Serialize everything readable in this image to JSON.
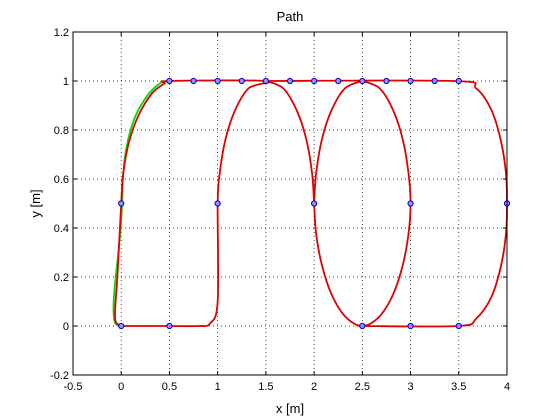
{
  "chart_data": {
    "type": "line",
    "title": "Path",
    "xlabel": "x [m]",
    "ylabel": "y [m]",
    "xlim": [
      -0.5,
      4
    ],
    "ylim": [
      -0.2,
      1.2
    ],
    "grid": true,
    "x_ticks": [
      -0.5,
      0,
      0.5,
      1,
      1.5,
      2,
      2.5,
      3,
      3.5,
      4
    ],
    "x_tick_labels": [
      "-0.5",
      "0",
      "0.5",
      "1",
      "1.5",
      "2",
      "2.5",
      "3",
      "3.5",
      "4"
    ],
    "y_ticks": [
      -0.2,
      0,
      0.2,
      0.4,
      0.6,
      0.8,
      1,
      1.2
    ],
    "y_tick_labels": [
      "-0.2",
      "0",
      "0.2",
      "0.4",
      "0.6",
      "0.8",
      "1",
      "1.2"
    ],
    "colors": {
      "reference": "#e00000",
      "actual": "#00dd00",
      "waypoint_edge": "#0000cc",
      "waypoint_fill": "#9090ff",
      "grid": "#000000"
    },
    "series": [
      {
        "role": "actual",
        "color": "#00dd00",
        "points": [
          [
            0,
            0
          ],
          [
            -0.06,
            0.01
          ],
          [
            -0.08,
            0.06
          ],
          [
            -0.07,
            0.15
          ],
          [
            -0.04,
            0.26
          ],
          [
            -0.01,
            0.38
          ],
          [
            0.01,
            0.5
          ],
          [
            0.02,
            0.62
          ],
          [
            0.06,
            0.74
          ],
          [
            0.14,
            0.85
          ],
          [
            0.27,
            0.94
          ],
          [
            0.4,
            0.99
          ],
          [
            0.5,
            1
          ]
        ]
      },
      {
        "role": "reference",
        "color": "#e00000",
        "points": [
          [
            0,
            0
          ],
          [
            -0.06,
            0.02
          ],
          [
            -0.06,
            0.09
          ],
          [
            -0.04,
            0.2
          ],
          [
            0,
            0.5
          ],
          [
            0.02,
            0.62
          ],
          [
            0.08,
            0.75
          ],
          [
            0.18,
            0.86
          ],
          [
            0.32,
            0.95
          ],
          [
            0.45,
            0.99
          ],
          [
            0.5,
            1
          ],
          [
            1.5,
            1
          ],
          [
            1.32,
            0.97
          ],
          [
            1.18,
            0.88
          ],
          [
            1.08,
            0.76
          ],
          [
            1.02,
            0.62
          ],
          [
            1,
            0.5
          ],
          [
            1,
            0.1
          ],
          [
            0.92,
            0.01
          ],
          [
            0.8,
            0
          ],
          [
            0.5,
            0
          ],
          [
            0.1,
            0
          ],
          [
            0,
            0
          ]
        ]
      },
      {
        "role": "reference",
        "color": "#e00000",
        "points": [
          [
            1.5,
            1
          ],
          [
            1.68,
            0.97
          ],
          [
            1.82,
            0.88
          ],
          [
            1.92,
            0.76
          ],
          [
            1.98,
            0.62
          ],
          [
            2,
            0.5
          ],
          [
            2.02,
            0.38
          ],
          [
            2.08,
            0.25
          ],
          [
            2.18,
            0.13
          ],
          [
            2.32,
            0.04
          ],
          [
            2.5,
            0
          ],
          [
            2.68,
            0.04
          ],
          [
            2.82,
            0.13
          ],
          [
            2.92,
            0.25
          ],
          [
            2.98,
            0.38
          ],
          [
            3,
            0.5
          ],
          [
            2.98,
            0.62
          ],
          [
            2.92,
            0.76
          ],
          [
            2.82,
            0.88
          ],
          [
            2.68,
            0.97
          ],
          [
            2.5,
            1
          ]
        ]
      },
      {
        "role": "reference",
        "color": "#e00000",
        "points": [
          [
            2.5,
            1
          ],
          [
            2.32,
            0.97
          ],
          [
            2.18,
            0.88
          ],
          [
            2.08,
            0.76
          ],
          [
            2.02,
            0.62
          ],
          [
            2,
            0.5
          ]
        ]
      },
      {
        "role": "reference",
        "color": "#e00000",
        "points": [
          [
            1.5,
            1
          ],
          [
            3.45,
            1
          ],
          [
            3.68,
            0.97
          ],
          [
            3.84,
            0.88
          ],
          [
            3.94,
            0.75
          ],
          [
            3.99,
            0.62
          ],
          [
            4,
            0.5
          ],
          [
            3.99,
            0.38
          ],
          [
            3.94,
            0.25
          ],
          [
            3.84,
            0.12
          ],
          [
            3.68,
            0.03
          ],
          [
            3.5,
            0
          ],
          [
            2.5,
            0
          ]
        ]
      }
    ],
    "waypoints": [
      [
        0,
        0
      ],
      [
        0.5,
        0
      ],
      [
        0,
        0.5
      ],
      [
        0.5,
        1
      ],
      [
        0.75,
        1
      ],
      [
        1,
        1
      ],
      [
        1.25,
        1
      ],
      [
        1.5,
        1
      ],
      [
        1.75,
        1
      ],
      [
        2,
        1
      ],
      [
        2.25,
        1
      ],
      [
        2.5,
        1
      ],
      [
        2.75,
        1
      ],
      [
        3,
        1
      ],
      [
        3.25,
        1
      ],
      [
        3.5,
        1
      ],
      [
        1,
        0.5
      ],
      [
        2,
        0.5
      ],
      [
        3,
        0.5
      ],
      [
        4,
        0.5
      ],
      [
        2.5,
        0
      ],
      [
        3,
        0
      ],
      [
        3.5,
        0
      ]
    ]
  }
}
